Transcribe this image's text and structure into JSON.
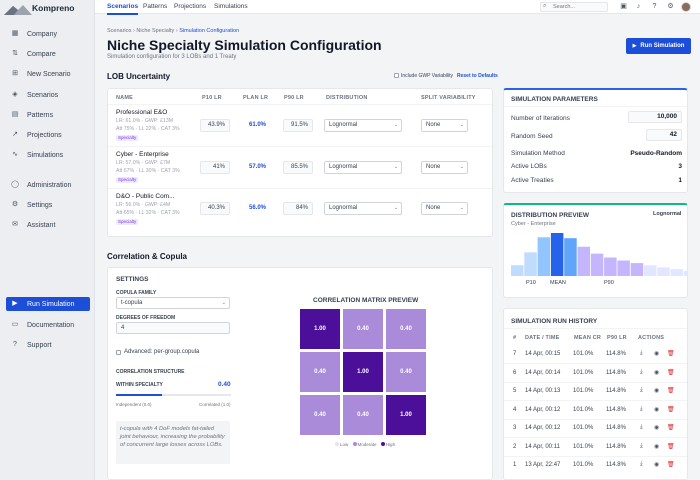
{
  "app": {
    "name": "Kompreno"
  },
  "sidebar": {
    "items": [
      {
        "label": "Company",
        "icon": "building-icon"
      },
      {
        "label": "Compare",
        "icon": "compare-icon"
      },
      {
        "label": "New Scenario",
        "icon": "plus-square-icon"
      },
      {
        "label": "Scenarios",
        "icon": "layers-icon"
      },
      {
        "label": "Patterns",
        "icon": "grid-icon"
      },
      {
        "label": "Projections",
        "icon": "trend-icon"
      },
      {
        "label": "Simulations",
        "icon": "pulse-icon"
      },
      {
        "label": "Administration",
        "icon": "shield-icon"
      },
      {
        "label": "Settings",
        "icon": "gear-icon"
      },
      {
        "label": "Assistant",
        "icon": "chat-icon"
      }
    ],
    "run_simulation": "Run Simulation",
    "bottom": [
      {
        "label": "Documentation",
        "icon": "book-icon"
      },
      {
        "label": "Support",
        "icon": "help-icon"
      }
    ]
  },
  "topnav": {
    "tabs": [
      "Scenarios",
      "Patterns",
      "Projections",
      "Simulations"
    ],
    "active": "Scenarios",
    "search_placeholder": "Search..."
  },
  "breadcrumb": [
    "Scenarios",
    "Niche Specialty",
    "Simulation Configuration"
  ],
  "page": {
    "title": "Niche Specialty Simulation Configuration",
    "subtitle": "Simulation configuration for 3 LOBs and 1 Treaty",
    "run_button": "Run Simulation"
  },
  "lob": {
    "title": "LOB Uncertainty",
    "include_gwp": "Include GWP Variability",
    "reset": "Reset to Defaults",
    "headers": [
      "NAME",
      "P10 LR",
      "PLAN LR",
      "P90 LR",
      "DISTRIBUTION",
      "SPLIT VARIABILITY"
    ],
    "rows": [
      {
        "name": "Professional E&O",
        "meta1": "LR: 61.0% · GWP: £13M",
        "meta2": "Att 75% · LL 22% · CAT 3%",
        "tag": "Specialty",
        "p10": "43.9%",
        "plan": "61.0%",
        "p90": "91.5%",
        "dist": "Lognormal",
        "split": "None"
      },
      {
        "name": "Cyber - Enterprise",
        "meta1": "LR: 57.0% · GWP: £7M",
        "meta2": "Att 67% · LL 30% · CAT 3%",
        "tag": "Specialty",
        "p10": "41%",
        "plan": "57.0%",
        "p90": "85.5%",
        "dist": "Lognormal",
        "split": "None"
      },
      {
        "name": "D&O - Public Com...",
        "meta1": "LR: 56.0% · GWP: £4M",
        "meta2": "Att 65% · LL 32% · CAT 3%",
        "tag": "Specialty",
        "p10": "40.3%",
        "plan": "56.0%",
        "p90": "84%",
        "dist": "Lognormal",
        "split": "None"
      }
    ]
  },
  "copula": {
    "title": "Correlation & Copula",
    "settings_title": "SETTINGS",
    "family_label": "COPULA FAMILY",
    "family_value": "t-copula",
    "dof_label": "DEGREES OF FREEDOM",
    "dof_value": "4",
    "advanced": "Advanced: per-group.copula",
    "structure_label": "CORRELATION STRUCTURE",
    "within_label": "WITHIN SPECIALTY",
    "within_value": "0.40",
    "within_fraction": 0.4,
    "slider_min": "Independent (0.0)",
    "slider_max": "Correlated (1.0)",
    "note": "t-copula with 4 DoF models fat-tailed joint behaviour, increasing the probability of concurrent large losses across LOBs.",
    "matrix_title": "CORRELATION MATRIX PREVIEW",
    "matrix": [
      [
        "1.00",
        "0.40",
        "0.40"
      ],
      [
        "0.40",
        "1.00",
        "0.40"
      ],
      [
        "0.40",
        "0.40",
        "1.00"
      ]
    ],
    "legend": [
      "Low",
      "Moderate",
      "High"
    ],
    "colors": {
      "high": "#4c0f99",
      "moderate": "#a98bd9",
      "low": "#e9e0f7"
    }
  },
  "params": {
    "title": "SIMULATION PARAMETERS",
    "iterations_label": "Number of Iterations",
    "iterations_value": "10,000",
    "seed_label": "Random Seed",
    "seed_value": "42",
    "method_label": "Simulation Method",
    "method_value": "Pseudo-Random",
    "active_lobs_label": "Active LOBs",
    "active_lobs_value": "3",
    "active_treaties_label": "Active Treaties",
    "active_treaties_value": "1"
  },
  "distribution": {
    "title": "DISTRIBUTION PREVIEW",
    "lob": "Cyber - Enterprise",
    "dist": "Lognormal",
    "labels": [
      "P10",
      "MEAN",
      "P90"
    ],
    "bars": [
      0.25,
      0.55,
      0.9,
      1.0,
      0.88,
      0.68,
      0.52,
      0.43,
      0.36,
      0.3,
      0.25,
      0.2,
      0.16,
      0.12
    ],
    "colors": {
      "light": "#bfdbfe",
      "mid": "#60a5fa",
      "mean": "#2563eb",
      "tail": "#c4b5fd",
      "tail_light": "#e0e7ff"
    }
  },
  "history": {
    "title": "SIMULATION RUN HISTORY",
    "headers": [
      "#",
      "DATE / TIME",
      "MEAN CR",
      "P90 LR",
      "ACTIONS"
    ],
    "rows": [
      {
        "n": "7",
        "date": "14 Apr, 00:15",
        "mean": "101.0%",
        "p90": "114.8%"
      },
      {
        "n": "6",
        "date": "14 Apr, 00:14",
        "mean": "101.0%",
        "p90": "114.8%"
      },
      {
        "n": "5",
        "date": "14 Apr, 00:13",
        "mean": "101.0%",
        "p90": "114.8%"
      },
      {
        "n": "4",
        "date": "14 Apr, 00:12",
        "mean": "101.0%",
        "p90": "114.8%"
      },
      {
        "n": "3",
        "date": "14 Apr, 00:12",
        "mean": "101.0%",
        "p90": "114.8%"
      },
      {
        "n": "2",
        "date": "14 Apr, 00:11",
        "mean": "101.0%",
        "p90": "114.8%"
      },
      {
        "n": "1",
        "date": "13 Apr, 22:47",
        "mean": "101.0%",
        "p90": "114.8%"
      }
    ]
  }
}
